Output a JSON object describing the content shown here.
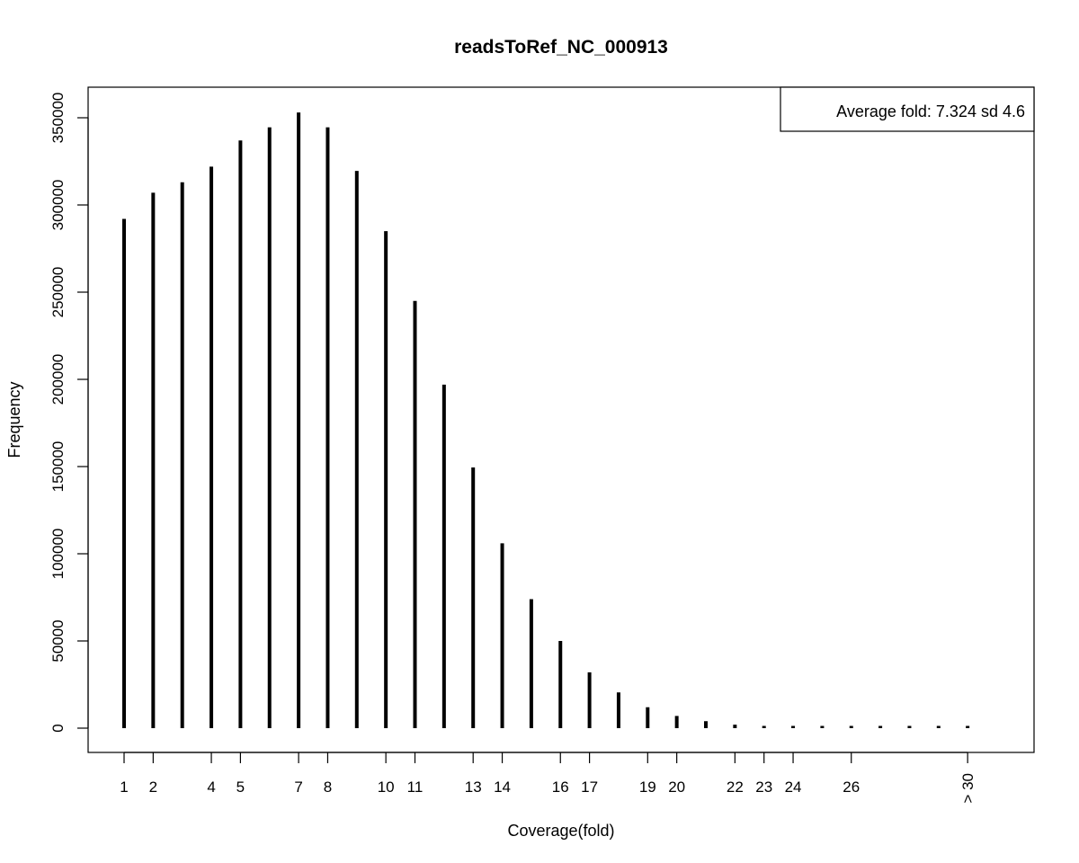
{
  "chart_data": {
    "type": "bar",
    "title": "readsToRef_NC_000913",
    "xlabel": "Coverage(fold)",
    "ylabel": "Frequency",
    "ylim": [
      0,
      362000
    ],
    "yticks": [
      0,
      50000,
      100000,
      150000,
      200000,
      250000,
      300000,
      350000
    ],
    "grid": false,
    "legend_position": "top-right",
    "legend_text": "Average fold:  7.324 sd 4.6",
    "xticks": [
      {
        "bar": 0,
        "label": "1"
      },
      {
        "bar": 1,
        "label": "2"
      },
      {
        "bar": 3,
        "label": "4"
      },
      {
        "bar": 4,
        "label": "5"
      },
      {
        "bar": 6,
        "label": "7"
      },
      {
        "bar": 7,
        "label": "8"
      },
      {
        "bar": 9,
        "label": "10"
      },
      {
        "bar": 10,
        "label": "11"
      },
      {
        "bar": 12,
        "label": "13"
      },
      {
        "bar": 13,
        "label": "14"
      },
      {
        "bar": 15,
        "label": "16"
      },
      {
        "bar": 16,
        "label": "17"
      },
      {
        "bar": 18,
        "label": "19"
      },
      {
        "bar": 19,
        "label": "20"
      },
      {
        "bar": 21,
        "label": "22"
      },
      {
        "bar": 22,
        "label": "23"
      },
      {
        "bar": 23,
        "label": "24"
      },
      {
        "bar": 25,
        "label": "26"
      },
      {
        "bar": 29,
        "label": "> 30",
        "rotated": true
      }
    ],
    "values": [
      292000,
      307000,
      313000,
      322000,
      337000,
      344500,
      353000,
      344500,
      319500,
      285000,
      245000,
      197000,
      149500,
      106000,
      74000,
      50000,
      32000,
      20500,
      12000,
      7000,
      4000,
      2000,
      1200,
      700,
      400,
      250,
      150,
      100,
      60,
      40
    ]
  }
}
